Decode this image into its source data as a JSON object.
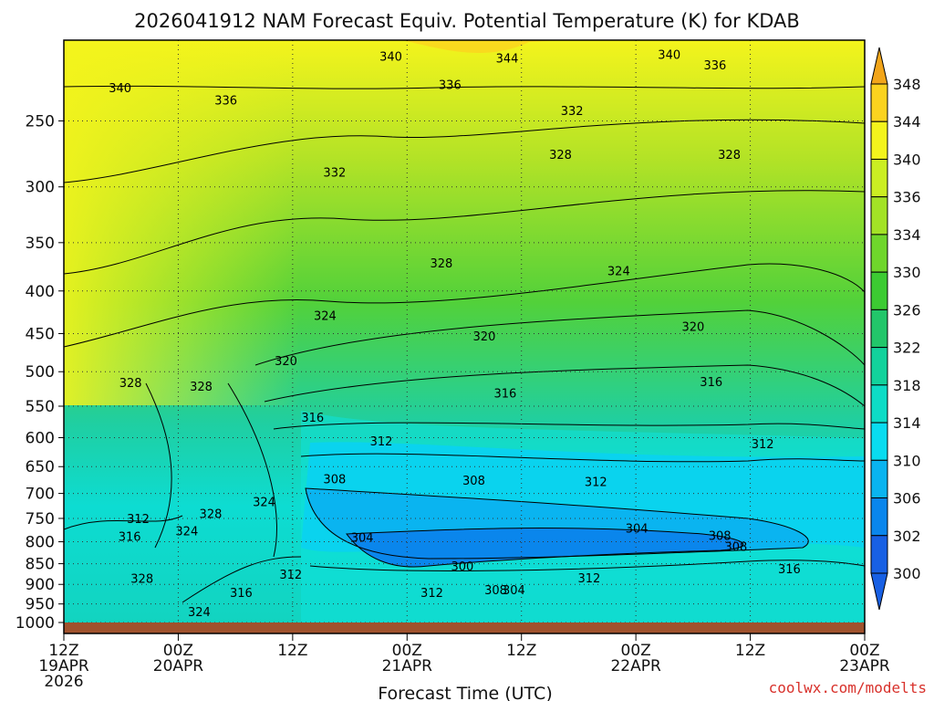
{
  "chart_data": {
    "type": "heatmap",
    "title": "2026041912 NAM Forecast Equiv. Potential Temperature (K) for KDAB",
    "xlabel": "Forecast Time (UTC)",
    "ylabel": "",
    "credit": "coolwx.com/modelts",
    "y_axis": {
      "scale": "log-pressure",
      "ticks": [
        250,
        300,
        350,
        400,
        450,
        500,
        550,
        600,
        650,
        700,
        750,
        800,
        850,
        900,
        950,
        1000
      ],
      "ylim": [
        200,
        1000
      ]
    },
    "x_axis": {
      "ticks": [
        {
          "line1": "12Z",
          "line2": "19APR",
          "line3": "2026"
        },
        {
          "line1": "00Z",
          "line2": "20APR",
          "line3": ""
        },
        {
          "line1": "12Z",
          "line2": "",
          "line3": ""
        },
        {
          "line1": "00Z",
          "line2": "21APR",
          "line3": ""
        },
        {
          "line1": "12Z",
          "line2": "",
          "line3": ""
        },
        {
          "line1": "00Z",
          "line2": "22APR",
          "line3": ""
        },
        {
          "line1": "12Z",
          "line2": "",
          "line3": ""
        },
        {
          "line1": "00Z",
          "line2": "23APR",
          "line3": ""
        }
      ],
      "xlim_hours": [
        0,
        84
      ]
    },
    "grid": true,
    "colorbar": {
      "levels": [
        348,
        344,
        340,
        336,
        334,
        330,
        326,
        322,
        318,
        314,
        310,
        306,
        302,
        300
      ],
      "colors": [
        "#f2a51a",
        "#fbd31f",
        "#f4f41c",
        "#cbee22",
        "#a3e226",
        "#6fd62b",
        "#3ccb32",
        "#22c66a",
        "#12d29c",
        "#0ddcc6",
        "#09dcf0",
        "#0ab4f0",
        "#0a86ec",
        "#1860e4"
      ]
    },
    "contour_labels": [
      {
        "text": "340",
        "hour": 5.9,
        "hPa": 228
      },
      {
        "text": "336",
        "hour": 17.0,
        "hPa": 236
      },
      {
        "text": "340",
        "hour": 34.3,
        "hPa": 209
      },
      {
        "text": "344",
        "hour": 46.5,
        "hPa": 210
      },
      {
        "text": "340",
        "hour": 63.5,
        "hPa": 208
      },
      {
        "text": "336",
        "hour": 68.3,
        "hPa": 214
      },
      {
        "text": "336",
        "hour": 40.5,
        "hPa": 226
      },
      {
        "text": "332",
        "hour": 53.3,
        "hPa": 243
      },
      {
        "text": "328",
        "hour": 52.1,
        "hPa": 274
      },
      {
        "text": "328",
        "hour": 69.8,
        "hPa": 274
      },
      {
        "text": "332",
        "hour": 28.4,
        "hPa": 288
      },
      {
        "text": "328",
        "hour": 39.6,
        "hPa": 370
      },
      {
        "text": "324",
        "hour": 58.2,
        "hPa": 378
      },
      {
        "text": "324",
        "hour": 27.4,
        "hPa": 428
      },
      {
        "text": "320",
        "hour": 44.1,
        "hPa": 453
      },
      {
        "text": "320",
        "hour": 66.0,
        "hPa": 441
      },
      {
        "text": "320",
        "hour": 23.3,
        "hPa": 485
      },
      {
        "text": "316",
        "hour": 46.3,
        "hPa": 530
      },
      {
        "text": "316",
        "hour": 67.9,
        "hPa": 514
      },
      {
        "text": "328",
        "hour": 7.0,
        "hPa": 515
      },
      {
        "text": "328",
        "hour": 14.4,
        "hPa": 520
      },
      {
        "text": "316",
        "hour": 26.1,
        "hPa": 567
      },
      {
        "text": "312",
        "hour": 33.3,
        "hPa": 605
      },
      {
        "text": "312",
        "hour": 73.3,
        "hPa": 610
      },
      {
        "text": "308",
        "hour": 28.4,
        "hPa": 672
      },
      {
        "text": "308",
        "hour": 43.0,
        "hPa": 675
      },
      {
        "text": "312",
        "hour": 55.8,
        "hPa": 677
      },
      {
        "text": "324",
        "hour": 21.0,
        "hPa": 716
      },
      {
        "text": "328",
        "hour": 15.4,
        "hPa": 740
      },
      {
        "text": "312",
        "hour": 7.8,
        "hPa": 750
      },
      {
        "text": "324",
        "hour": 12.9,
        "hPa": 776
      },
      {
        "text": "316",
        "hour": 6.9,
        "hPa": 788
      },
      {
        "text": "304",
        "hour": 31.3,
        "hPa": 790
      },
      {
        "text": "304",
        "hour": 60.1,
        "hPa": 770
      },
      {
        "text": "308",
        "hour": 68.8,
        "hPa": 786
      },
      {
        "text": "308",
        "hour": 70.5,
        "hPa": 810
      },
      {
        "text": "300",
        "hour": 41.8,
        "hPa": 855
      },
      {
        "text": "312",
        "hour": 23.8,
        "hPa": 875
      },
      {
        "text": "316",
        "hour": 76.1,
        "hPa": 862
      },
      {
        "text": "312",
        "hour": 55.1,
        "hPa": 884
      },
      {
        "text": "328",
        "hour": 8.2,
        "hPa": 885
      },
      {
        "text": "316",
        "hour": 18.6,
        "hPa": 920
      },
      {
        "text": "312",
        "hour": 38.6,
        "hPa": 920
      },
      {
        "text": "308",
        "hour": 45.3,
        "hPa": 913
      },
      {
        "text": "304",
        "hour": 47.2,
        "hPa": 913
      },
      {
        "text": "324",
        "hour": 14.2,
        "hPa": 970
      }
    ]
  }
}
